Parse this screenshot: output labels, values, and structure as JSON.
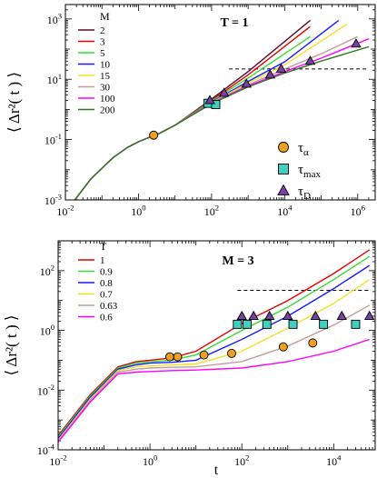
{
  "chart_data": [
    {
      "type": "line",
      "panel": "top",
      "title": "T = 1",
      "xlabel": "",
      "ylabel": "⟨ Δr²( t ) ⟩",
      "xscale": "log",
      "yscale": "log",
      "xlim": [
        0.01,
        3000000
      ],
      "ylim": [
        0.001,
        3000
      ],
      "x_ticks": [
        {
          "v": 0.01,
          "b": "10",
          "e": "-2"
        },
        {
          "v": 1,
          "b": "10",
          "e": "0"
        },
        {
          "v": 100,
          "b": "10",
          "e": "2"
        },
        {
          "v": 10000,
          "b": "10",
          "e": "4"
        },
        {
          "v": 1000000,
          "b": "10",
          "e": "6"
        }
      ],
      "y_ticks": [
        {
          "v": 0.001,
          "b": "10",
          "e": "-3"
        },
        {
          "v": 0.1,
          "b": "10",
          "e": "-1"
        },
        {
          "v": 10,
          "b": "10",
          "e": "1"
        },
        {
          "v": 1000,
          "b": "10",
          "e": "3"
        }
      ],
      "legend_title": "M",
      "legend_position": "top-left",
      "series": [
        {
          "name": "2",
          "color": "#5c0a2e",
          "x": [
            0.018,
            0.05,
            0.2,
            0.5,
            1,
            2,
            3,
            10,
            80,
            1000,
            50000
          ],
          "y": [
            0.001,
            0.005,
            0.025,
            0.055,
            0.085,
            0.12,
            0.14,
            0.3,
            1.8,
            18,
            900
          ]
        },
        {
          "name": "3",
          "color": "#e60000",
          "x": [
            0.018,
            0.05,
            0.2,
            0.5,
            1,
            2,
            3,
            10,
            100,
            1000,
            50000
          ],
          "y": [
            0.001,
            0.005,
            0.025,
            0.055,
            0.085,
            0.12,
            0.14,
            0.3,
            2,
            14,
            560
          ]
        },
        {
          "name": "5",
          "color": "#33dd33",
          "x": [
            0.018,
            0.05,
            0.2,
            0.5,
            1,
            2,
            3,
            10,
            100,
            1000,
            50000
          ],
          "y": [
            0.001,
            0.005,
            0.025,
            0.055,
            0.085,
            0.12,
            0.14,
            0.3,
            1.9,
            11,
            260
          ]
        },
        {
          "name": "10",
          "color": "#1a1aff",
          "x": [
            0.018,
            0.05,
            0.2,
            0.5,
            1,
            2,
            3,
            10,
            100,
            1000,
            10000,
            300000
          ],
          "y": [
            0.001,
            0.005,
            0.025,
            0.055,
            0.085,
            0.12,
            0.14,
            0.3,
            1.75,
            8.5,
            38,
            900
          ]
        },
        {
          "name": "15",
          "color": "#f5e028",
          "x": [
            0.018,
            0.05,
            0.2,
            0.5,
            1,
            2,
            3,
            10,
            100,
            1000,
            10000,
            500000
          ],
          "y": [
            0.001,
            0.005,
            0.025,
            0.055,
            0.085,
            0.12,
            0.14,
            0.3,
            1.7,
            7.5,
            30,
            660
          ]
        },
        {
          "name": "30",
          "color": "#c49a9a",
          "x": [
            0.018,
            0.05,
            0.2,
            0.5,
            1,
            2,
            3,
            10,
            100,
            1000,
            10000,
            100000,
            1000000
          ],
          "y": [
            0.001,
            0.005,
            0.025,
            0.055,
            0.085,
            0.12,
            0.14,
            0.3,
            1.65,
            6.5,
            22,
            70,
            260
          ]
        },
        {
          "name": "100",
          "color": "#ff00ff",
          "x": [
            0.018,
            0.05,
            0.2,
            0.5,
            1,
            2,
            3,
            10,
            100,
            1000,
            10000,
            100000,
            2000000
          ],
          "y": [
            0.001,
            0.005,
            0.025,
            0.055,
            0.085,
            0.12,
            0.14,
            0.3,
            1.6,
            6,
            18,
            50,
            220
          ]
        },
        {
          "name": "200",
          "color": "#2b7a1e",
          "x": [
            0.018,
            0.05,
            0.2,
            0.5,
            1,
            2,
            3,
            10,
            100,
            1000,
            10000,
            100000,
            2000000
          ],
          "y": [
            0.001,
            0.005,
            0.025,
            0.055,
            0.085,
            0.12,
            0.14,
            0.3,
            1.55,
            5.6,
            16,
            40,
            120
          ]
        }
      ],
      "dashed_line": {
        "x": [
          300,
          2000000
        ],
        "y": [
          22,
          22
        ]
      },
      "markers": [
        {
          "kind": "circle",
          "color": "#f0a020",
          "x": [
            2.6
          ],
          "y": [
            0.14
          ]
        },
        {
          "kind": "square",
          "color": "#40d0c0",
          "x": [
            80,
            130
          ],
          "y": [
            1.6,
            1.45
          ]
        },
        {
          "kind": "triangle",
          "color": "#7a40a8",
          "x": [
            90,
            220,
            900,
            4000,
            8000,
            50000,
            900000
          ],
          "y": [
            2,
            3.5,
            7,
            14,
            22,
            40,
            150
          ]
        }
      ],
      "marker_legend": [
        {
          "kind": "circle",
          "color": "#f0a020",
          "sym": "τ",
          "sub": "α"
        },
        {
          "kind": "square",
          "color": "#40d0c0",
          "sym": "τ",
          "sub": "max"
        },
        {
          "kind": "triangle",
          "color": "#7a40a8",
          "sym": "τ",
          "sub": "D"
        }
      ]
    },
    {
      "type": "line",
      "panel": "bottom",
      "title": "M = 3",
      "xlabel": "t",
      "ylabel": "⟨ Δr²( t ) ⟩",
      "xscale": "log",
      "yscale": "log",
      "xlim": [
        0.01,
        80000
      ],
      "ylim": [
        0.0001,
        1000
      ],
      "x_ticks": [
        {
          "v": 0.01,
          "b": "10",
          "e": "-2"
        },
        {
          "v": 1,
          "b": "10",
          "e": "0"
        },
        {
          "v": 100,
          "b": "10",
          "e": "2"
        },
        {
          "v": 10000,
          "b": "10",
          "e": "4"
        }
      ],
      "y_ticks": [
        {
          "v": 0.0001,
          "b": "10",
          "e": "-4"
        },
        {
          "v": 0.01,
          "b": "10",
          "e": "-2"
        },
        {
          "v": 1,
          "b": "10",
          "e": "0"
        },
        {
          "v": 100,
          "b": "10",
          "e": "2"
        }
      ],
      "legend_title": "T",
      "legend_position": "top-left",
      "series": [
        {
          "name": "1",
          "color": "#e60000",
          "x": [
            0.01,
            0.05,
            0.2,
            0.5,
            1,
            3,
            10,
            100,
            1000,
            10000,
            60000
          ],
          "y": [
            0.0003,
            0.007,
            0.06,
            0.09,
            0.1,
            0.12,
            0.2,
            1.7,
            10,
            80,
            500
          ]
        },
        {
          "name": "0.9",
          "color": "#33dd33",
          "x": [
            0.01,
            0.05,
            0.2,
            0.5,
            1,
            3,
            10,
            100,
            1000,
            10000,
            60000
          ],
          "y": [
            0.00027,
            0.0063,
            0.055,
            0.08,
            0.09,
            0.1,
            0.15,
            1,
            6,
            50,
            300
          ]
        },
        {
          "name": "0.8",
          "color": "#1a1aff",
          "x": [
            0.01,
            0.05,
            0.2,
            0.5,
            1,
            3,
            10,
            100,
            1000,
            10000,
            60000
          ],
          "y": [
            0.00024,
            0.0057,
            0.05,
            0.07,
            0.08,
            0.085,
            0.1,
            0.5,
            3,
            25,
            150
          ]
        },
        {
          "name": "0.7",
          "color": "#f5e028",
          "x": [
            0.01,
            0.05,
            0.2,
            0.5,
            1,
            3,
            10,
            100,
            1000,
            10000,
            60000
          ],
          "y": [
            0.00021,
            0.005,
            0.045,
            0.06,
            0.065,
            0.07,
            0.075,
            0.2,
            1.2,
            8,
            50
          ]
        },
        {
          "name": "0.63",
          "color": "#c49a9a",
          "x": [
            0.01,
            0.05,
            0.2,
            0.5,
            1,
            3,
            10,
            100,
            1000,
            10000,
            60000
          ],
          "y": [
            0.0002,
            0.0045,
            0.04,
            0.05,
            0.055,
            0.058,
            0.06,
            0.09,
            0.3,
            1.5,
            7
          ]
        },
        {
          "name": "0.6",
          "color": "#ff00ff",
          "x": [
            0.01,
            0.05,
            0.2,
            0.5,
            1,
            3,
            10,
            100,
            1000,
            10000,
            60000
          ],
          "y": [
            0.00018,
            0.004,
            0.035,
            0.04,
            0.042,
            0.045,
            0.047,
            0.055,
            0.09,
            0.2,
            0.5
          ]
        }
      ],
      "dashed_line": {
        "x": [
          80,
          60000
        ],
        "y": [
          22,
          22
        ]
      },
      "markers": [
        {
          "kind": "circle",
          "color": "#f0a020",
          "x": [
            2.7,
            4,
            15,
            60,
            800,
            3500
          ],
          "y": [
            0.13,
            0.13,
            0.15,
            0.17,
            0.28,
            0.38
          ]
        },
        {
          "kind": "square",
          "color": "#40d0c0",
          "x": [
            80,
            130,
            350,
            1300,
            6000,
            30000
          ],
          "y": [
            1.6,
            1.6,
            1.6,
            1.6,
            1.6,
            1.6
          ]
        },
        {
          "kind": "triangle",
          "color": "#7a40a8",
          "x": [
            100,
            180,
            400,
            1000,
            4000,
            15000,
            60000
          ],
          "y": [
            3,
            3,
            3,
            3,
            3,
            3,
            3
          ]
        }
      ]
    }
  ]
}
